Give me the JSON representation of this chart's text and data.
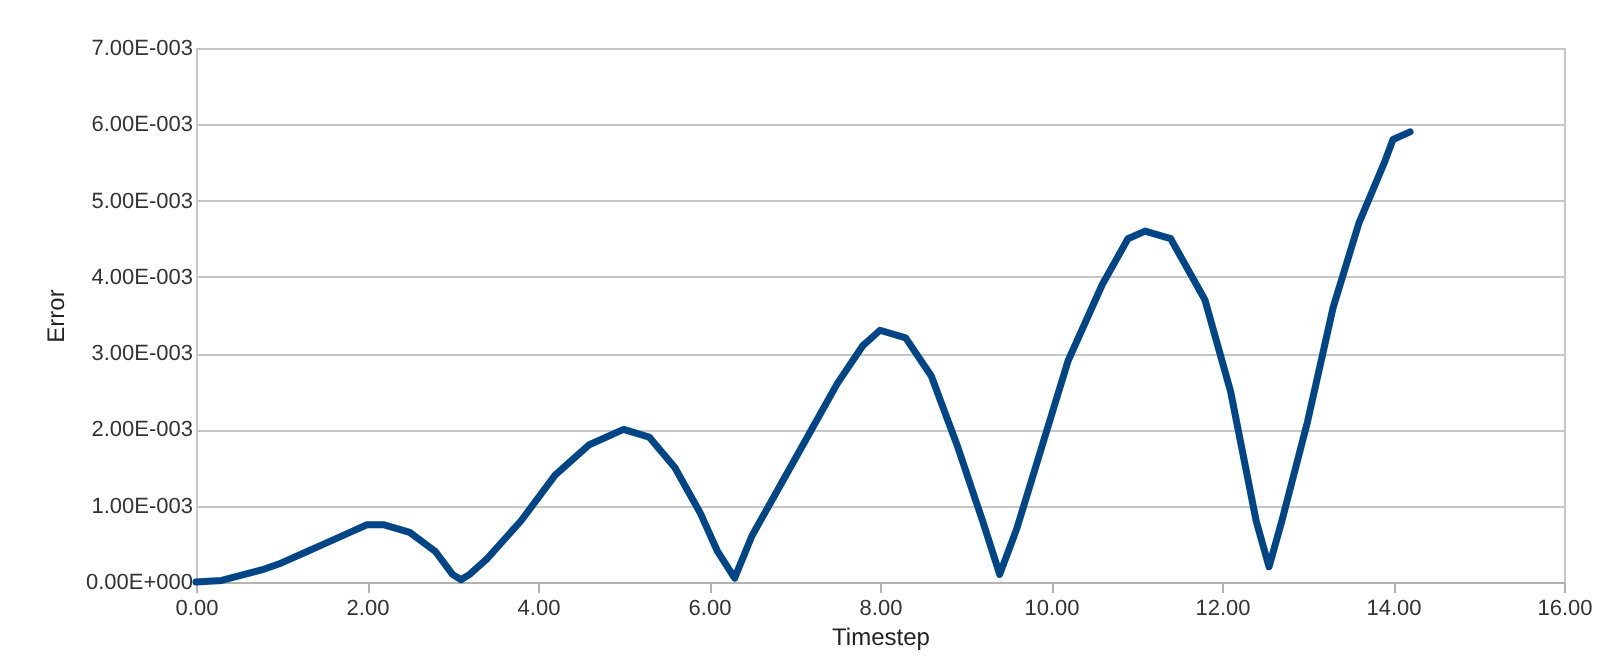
{
  "chart_data": {
    "type": "line",
    "xlabel": "Timestep",
    "ylabel": "Error",
    "series": [
      {
        "color": "#004586",
        "x": [
          0,
          0.3,
          0.5,
          0.8,
          1.0,
          1.3,
          1.5,
          1.8,
          2.0,
          2.2,
          2.5,
          2.8,
          3.0,
          3.1,
          3.2,
          3.4,
          3.8,
          4.2,
          4.6,
          5.0,
          5.3,
          5.6,
          5.9,
          6.1,
          6.3,
          6.5,
          6.8,
          7.1,
          7.5,
          7.8,
          8.0,
          8.3,
          8.6,
          8.9,
          9.2,
          9.4,
          9.6,
          9.9,
          10.2,
          10.6,
          10.9,
          11.1,
          11.4,
          11.8,
          12.1,
          12.4,
          12.55,
          12.7,
          13.0,
          13.3,
          13.6,
          13.9,
          14.0,
          14.2
        ],
        "values": [
          0,
          2e-05,
          8e-05,
          0.00017,
          0.00025,
          0.0004,
          0.0005,
          0.00065,
          0.00075,
          0.00075,
          0.00065,
          0.0004,
          0.0001,
          3e-05,
          0.0001,
          0.0003,
          0.0008,
          0.0014,
          0.0018,
          0.002,
          0.0019,
          0.0015,
          0.0009,
          0.0004,
          5e-05,
          0.0006,
          0.0012,
          0.0018,
          0.0026,
          0.0031,
          0.0033,
          0.0032,
          0.0027,
          0.0018,
          0.0008,
          0.0001,
          0.0007,
          0.0018,
          0.0029,
          0.0039,
          0.0045,
          0.0046,
          0.0045,
          0.0037,
          0.0025,
          0.0008,
          0.0002,
          0.0008,
          0.0021,
          0.0036,
          0.0047,
          0.0055,
          0.0058,
          0.0059
        ]
      }
    ],
    "xlim": [
      0,
      16
    ],
    "xticks": [
      {
        "value": 0,
        "label": "0.00"
      },
      {
        "value": 2,
        "label": "2.00"
      },
      {
        "value": 4,
        "label": "4.00"
      },
      {
        "value": 6,
        "label": "6.00"
      },
      {
        "value": 8,
        "label": "8.00"
      },
      {
        "value": 10,
        "label": "10.00"
      },
      {
        "value": 12,
        "label": "12.00"
      },
      {
        "value": 14,
        "label": "14.00"
      },
      {
        "value": 16,
        "label": "16.00"
      }
    ],
    "ylim": [
      0,
      0.007
    ],
    "yticks": [
      {
        "value": 0,
        "label": "0.00E+000"
      },
      {
        "value": 0.001,
        "label": "1.00E-003"
      },
      {
        "value": 0.002,
        "label": "2.00E-003"
      },
      {
        "value": 0.003,
        "label": "3.00E-003"
      },
      {
        "value": 0.004,
        "label": "4.00E-003"
      },
      {
        "value": 0.005,
        "label": "5.00E-003"
      },
      {
        "value": 0.006,
        "label": "6.00E-003"
      },
      {
        "value": 0.007,
        "label": "7.00E-003"
      }
    ],
    "grid": "y",
    "legend": false,
    "marker": "none",
    "line_style": "solid"
  }
}
